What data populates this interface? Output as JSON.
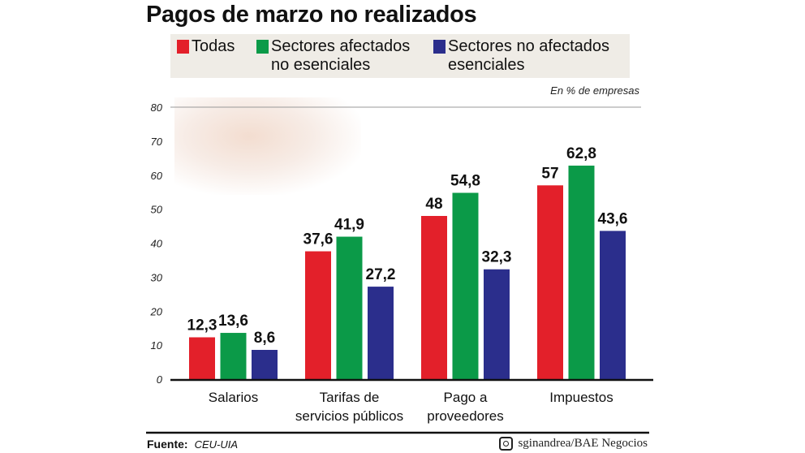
{
  "chart_data": {
    "type": "bar",
    "title": "Pagos de marzo no realizados",
    "unit_note": "En % de empresas",
    "categories": [
      [
        "Salarios"
      ],
      [
        "Tarifas de",
        "servicios públicos"
      ],
      [
        "Pago a",
        "proveedores"
      ],
      [
        "Impuestos"
      ]
    ],
    "series": [
      {
        "name": [
          "Todas"
        ],
        "color": "#e3202a",
        "values": [
          12.3,
          37.6,
          48,
          57
        ],
        "labels": [
          "12,3",
          "37,6",
          "48",
          "57"
        ]
      },
      {
        "name": [
          "Sectores afectados",
          "no esenciales"
        ],
        "color": "#0b9a48",
        "values": [
          13.6,
          41.9,
          54.8,
          62.8
        ],
        "labels": [
          "13,6",
          "41,9",
          "54,8",
          "62,8"
        ]
      },
      {
        "name": [
          "Sectores no afectados",
          "esenciales"
        ],
        "color": "#2b2e8c",
        "values": [
          8.6,
          27.2,
          32.3,
          43.6
        ],
        "labels": [
          "8,6",
          "27,2",
          "32,3",
          "43,6"
        ]
      }
    ],
    "ylim": [
      0,
      80
    ],
    "yticks": [
      "0",
      "10",
      "20",
      "30",
      "40",
      "50",
      "60",
      "70",
      "80"
    ],
    "grid": false,
    "legend": "top"
  },
  "footer": {
    "source_label": "Fuente:",
    "source": "CEU-UIA",
    "credit": "sginandrea/BAE Negocios",
    "credit_icon": "instagram-icon"
  }
}
